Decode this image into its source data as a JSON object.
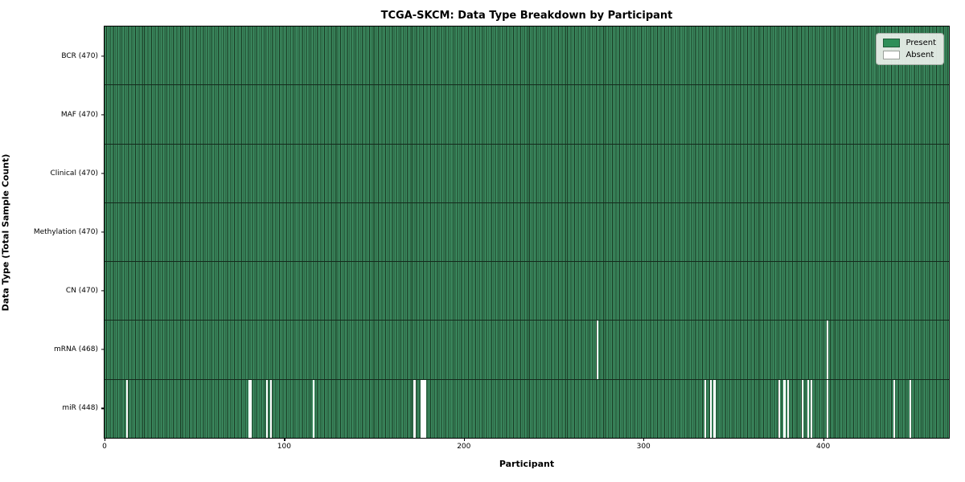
{
  "chart_data": {
    "type": "heatmap",
    "title": "TCGA-SKCM: Data Type Breakdown by Participant",
    "xlabel": "Participant",
    "ylabel": "Data Type (Total Sample Count)",
    "x_range": [
      0,
      470
    ],
    "x_ticks": [
      0,
      100,
      200,
      300,
      400
    ],
    "n_participants": 470,
    "rows": [
      {
        "label": "BCR (470)",
        "data_type": "BCR",
        "present_count": 470,
        "absent_participants": []
      },
      {
        "label": "MAF (470)",
        "data_type": "MAF",
        "present_count": 470,
        "absent_participants": []
      },
      {
        "label": "Clinical (470)",
        "data_type": "Clinical",
        "present_count": 470,
        "absent_participants": []
      },
      {
        "label": "Methylation (470)",
        "data_type": "Methylation",
        "present_count": 470,
        "absent_participants": []
      },
      {
        "label": "CN (470)",
        "data_type": "CN",
        "present_count": 470,
        "absent_participants": []
      },
      {
        "label": "mRNA (468)",
        "data_type": "mRNA",
        "present_count": 468,
        "absent_participants": [
          274,
          402
        ]
      },
      {
        "label": "miR (448)",
        "data_type": "miR",
        "present_count": 448,
        "absent_participants": [
          12,
          80,
          81,
          90,
          92,
          116,
          172,
          176,
          177,
          178,
          334,
          337,
          339,
          375,
          378,
          380,
          388,
          391,
          393,
          402,
          439,
          448
        ]
      }
    ],
    "legend": [
      {
        "label": "Present",
        "color": "#2e8e58"
      },
      {
        "label": "Absent",
        "color": "#ffffff"
      }
    ],
    "colors": {
      "present_fill": "#3f9266",
      "bar_edge": "#17351f",
      "absent": "#ffffff",
      "row_separator": "#142a1c",
      "axis_spine": "#000000",
      "legend_face": "#ecf1ec"
    },
    "legend_position": "upper right",
    "grid": false
  }
}
